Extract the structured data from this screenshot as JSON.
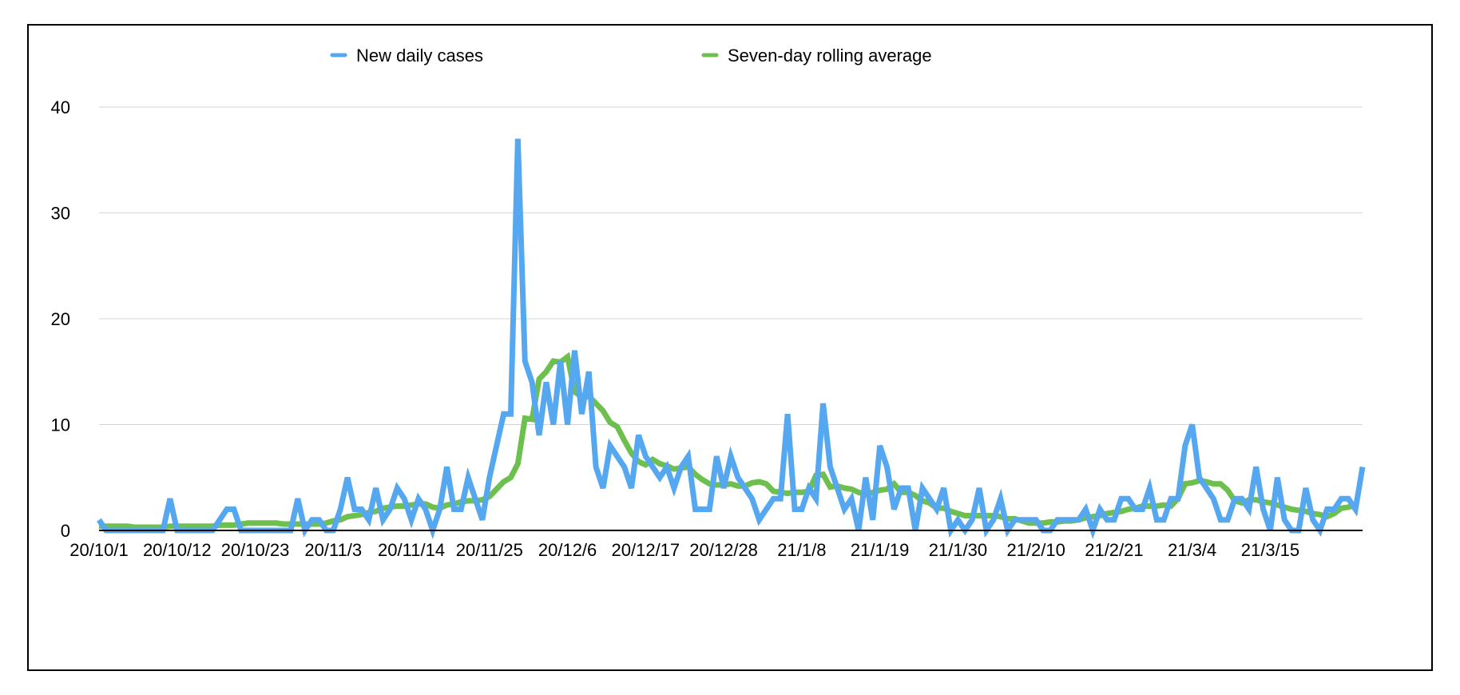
{
  "chart_data": {
    "type": "line",
    "title": "",
    "xlabel": "",
    "ylabel": "",
    "ylim": [
      0,
      40
    ],
    "y_ticks": [
      0,
      10,
      20,
      30,
      40
    ],
    "grid": true,
    "legend_position": "top-center",
    "x_start": "2020-10-01",
    "x_tick_labels": [
      "20/10/1",
      "20/10/12",
      "20/10/23",
      "20/11/3",
      "20/11/14",
      "20/11/25",
      "20/12/6",
      "20/12/17",
      "20/12/28",
      "21/1/8",
      "21/1/19",
      "21/1/30",
      "21/2/10",
      "21/2/21",
      "21/3/4",
      "21/3/15"
    ],
    "series": [
      {
        "name": "New daily cases",
        "color": "#55a8f0",
        "values": [
          1,
          0,
          0,
          0,
          0,
          0,
          0,
          0,
          0,
          0,
          3,
          0,
          0,
          0,
          0,
          0,
          0,
          1,
          2,
          2,
          0,
          0,
          0,
          0,
          0,
          0,
          0,
          0,
          3,
          0,
          1,
          1,
          0,
          0,
          2,
          5,
          2,
          2,
          1,
          4,
          1,
          2,
          4,
          3,
          1,
          3,
          2,
          0,
          2,
          6,
          2,
          2,
          5,
          3,
          1,
          5,
          8,
          11,
          11,
          37,
          16,
          14,
          9,
          14,
          10,
          16,
          10,
          17,
          11,
          15,
          6,
          4,
          8,
          7,
          6,
          4,
          9,
          7,
          6,
          5,
          6,
          4,
          6,
          7,
          2,
          2,
          2,
          7,
          4,
          7,
          5,
          4,
          3,
          1,
          2,
          3,
          3,
          11,
          2,
          2,
          4,
          3,
          12,
          6,
          4,
          2,
          3,
          0,
          5,
          1,
          8,
          6,
          2,
          4,
          4,
          0,
          4,
          3,
          2,
          4,
          0,
          1,
          0,
          1,
          4,
          0,
          1,
          3,
          0,
          1,
          1,
          1,
          1,
          0,
          0,
          1,
          1,
          1,
          1,
          2,
          0,
          2,
          1,
          1,
          3,
          3,
          2,
          2,
          4,
          1,
          1,
          3,
          3,
          8,
          10,
          5,
          4,
          3,
          1,
          1,
          3,
          3,
          2,
          6,
          2,
          0,
          5,
          1,
          0,
          0,
          4,
          1,
          0,
          2,
          2,
          3,
          3,
          2,
          6
        ]
      },
      {
        "name": "Seven-day rolling average",
        "color": "#6dc04e",
        "values": [
          0.4,
          0.4,
          0.4,
          0.4,
          0.4,
          0.3,
          0.3,
          0.3,
          0.3,
          0.3,
          0.4,
          0.4,
          0.4,
          0.4,
          0.4,
          0.4,
          0.4,
          0.5,
          0.5,
          0.5,
          0.6,
          0.7,
          0.7,
          0.7,
          0.7,
          0.7,
          0.6,
          0.6,
          0.6,
          0.6,
          0.6,
          0.6,
          0.7,
          0.9,
          1.0,
          1.3,
          1.4,
          1.5,
          1.7,
          1.8,
          2.1,
          2.2,
          2.3,
          2.3,
          2.4,
          2.5,
          2.5,
          2.2,
          2.1,
          2.4,
          2.5,
          2.7,
          2.8,
          2.8,
          2.9,
          3.2,
          3.9,
          4.6,
          5.0,
          6.3,
          10.6,
          10.5,
          14.3,
          15.0,
          16.0,
          15.9,
          16.4,
          13.1,
          12.6,
          12.7,
          12.0,
          11.3,
          10.2,
          9.8,
          8.5,
          7.3,
          6.5,
          6.2,
          6.7,
          6.3,
          6.1,
          5.8,
          5.9,
          6.0,
          5.3,
          4.8,
          4.4,
          4.3,
          4.3,
          4.4,
          4.2,
          4.2,
          4.5,
          4.6,
          4.4,
          3.7,
          3.6,
          3.5,
          3.6,
          3.6,
          3.7,
          5.2,
          5.3,
          4.1,
          4.2,
          4.0,
          3.9,
          3.6,
          3.4,
          3.6,
          3.8,
          3.9,
          4.4,
          3.6,
          3.6,
          3.3,
          2.8,
          2.6,
          2.1,
          2.1,
          1.8,
          1.6,
          1.4,
          1.4,
          1.4,
          1.4,
          1.4,
          1.3,
          1.1,
          1.1,
          0.9,
          0.7,
          0.7,
          0.7,
          0.8,
          0.8,
          0.9,
          0.9,
          1.0,
          1.2,
          1.3,
          1.4,
          1.6,
          1.7,
          1.8,
          2.0,
          2.1,
          2.3,
          2.3,
          2.3,
          2.4,
          2.3,
          3.0,
          4.4,
          4.5,
          4.7,
          4.6,
          4.4,
          4.4,
          3.8,
          2.8,
          2.6,
          2.9,
          2.9,
          2.7,
          2.6,
          2.4,
          2.2,
          2.0,
          1.9,
          1.8,
          1.6,
          1.5,
          1.3,
          1.6,
          2.1,
          2.2,
          2.4
        ]
      }
    ]
  }
}
